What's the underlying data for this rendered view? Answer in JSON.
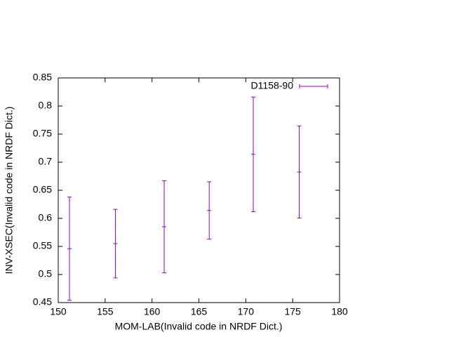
{
  "chart_data": {
    "type": "errorbar",
    "xlabel": "MOM-LAB(Invalid code in NRDF Dict.)",
    "ylabel": "INV-XSEC(Invalid code in NRDF Dict.)",
    "series": [
      {
        "name": "D1158-90",
        "color": "#9400d3",
        "x": [
          151.2,
          156.1,
          161.3,
          166.1,
          170.8,
          175.7
        ],
        "values": [
          0.546,
          0.555,
          0.585,
          0.614,
          0.714,
          0.6825
        ],
        "errors": [
          0.092,
          0.061,
          0.082,
          0.051,
          0.102,
          0.082
        ]
      }
    ],
    "xlim": [
      150,
      180
    ],
    "xticks": [
      150,
      155,
      160,
      165,
      170,
      175,
      180
    ],
    "ylim": [
      0.45,
      0.85
    ],
    "yticks": [
      0.45,
      0.5,
      0.55,
      0.6,
      0.65,
      0.7,
      0.75,
      0.8,
      0.85
    ],
    "legend": "top-right"
  }
}
